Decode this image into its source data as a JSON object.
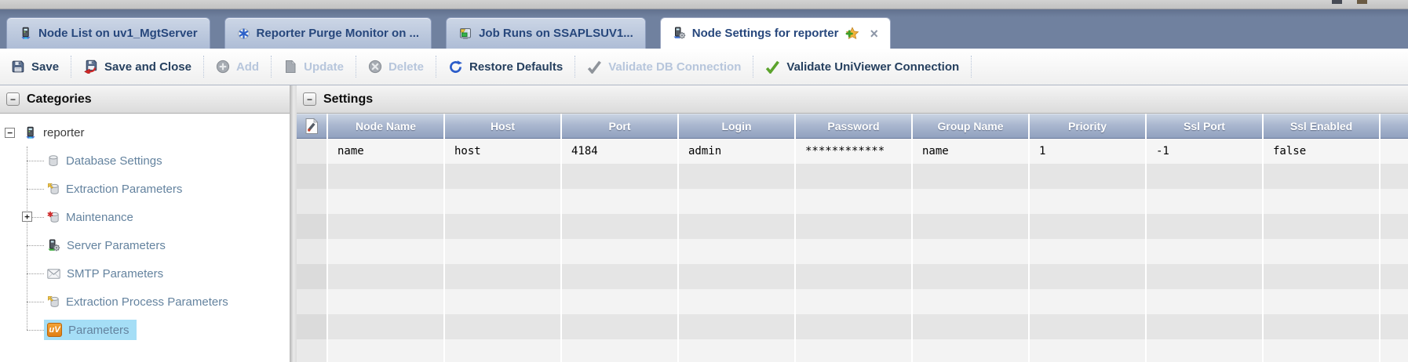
{
  "ui_colors": {
    "tab_bar_bg": "#70819f",
    "active_tab_bg": "#ffffff",
    "inactive_tab_bg": "#b7c3d8",
    "enabled_text": "#26405f",
    "disabled_text": "#b7c6dc",
    "selected_tree_bg": "#a5def6",
    "table_header_bg": "#9dacc7",
    "univiewer_orange": "#e8891d",
    "validate_green": "#5ca32d",
    "restore_blue": "#2b5cc9"
  },
  "tabs": [
    {
      "label": "Node List on uv1_MgtServer",
      "icon": "server-icon",
      "active": false
    },
    {
      "label": "Reporter Purge Monitor on ...",
      "icon": "purge-monitor-icon",
      "active": false
    },
    {
      "label": "Job Runs on SSAPLSUV1...",
      "icon": "job-runs-icon",
      "active": false
    },
    {
      "label": "Node Settings for reporter",
      "icon": "node-settings-server-icon",
      "active": true,
      "star": true,
      "closable": true
    }
  ],
  "toolbar": {
    "items": [
      {
        "label": "Save",
        "icon": "save-icon",
        "enabled": true
      },
      {
        "label": "Save and Close",
        "icon": "save-and-close-icon",
        "enabled": true
      },
      {
        "label": "Add",
        "icon": "add-icon",
        "enabled": false
      },
      {
        "label": "Update",
        "icon": "update-icon",
        "enabled": false
      },
      {
        "label": "Delete",
        "icon": "delete-icon",
        "enabled": false
      },
      {
        "label": "Restore Defaults",
        "icon": "restore-defaults-icon",
        "enabled": true
      },
      {
        "label": "Validate DB Connection",
        "icon": "check-gray-icon",
        "enabled": false
      },
      {
        "label": "Validate UniViewer Connection",
        "icon": "check-green-icon",
        "enabled": true
      }
    ]
  },
  "categories": {
    "title": "Categories",
    "root": {
      "label": "reporter",
      "icon": "server-icon",
      "expand_glyph": "−"
    },
    "items": [
      {
        "label": "Database Settings",
        "icon": "database-icon"
      },
      {
        "label": "Extraction Parameters",
        "icon": "database-export-icon"
      },
      {
        "label": "Maintenance",
        "icon": "database-maintenance-icon",
        "expand_glyph": "+"
      },
      {
        "label": "Server Parameters",
        "icon": "server-gear-icon"
      },
      {
        "label": "SMTP Parameters",
        "icon": "mail-icon"
      },
      {
        "label": "Extraction Process Parameters",
        "icon": "database-export-icon"
      },
      {
        "label": "Parameters",
        "icon": "univiewer-icon",
        "selected": true
      }
    ],
    "univiewer_icon_text": "uV"
  },
  "settings": {
    "title": "Settings",
    "corner_icon": "page-tool-icon",
    "columns": [
      "Node Name",
      "Host",
      "Port",
      "Login",
      "Password",
      "Group Name",
      "Priority",
      "Ssl Port",
      "Ssl Enabled"
    ],
    "rows": [
      [
        "name",
        "host",
        "4184",
        "admin",
        "************",
        "name",
        "1",
        "-1",
        "false"
      ]
    ],
    "empty_row_count": 8
  }
}
